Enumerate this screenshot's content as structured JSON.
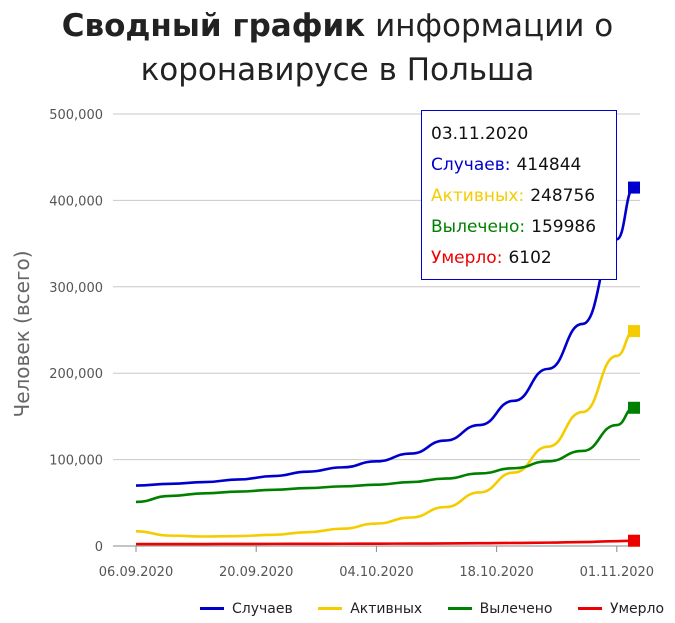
{
  "title_bold": "Сводный график",
  "title_rest_line1": "информации о",
  "title_line2": "коронавирусе в Польша",
  "chart_data": {
    "type": "line",
    "ylabel": "Человек (всего)",
    "ylim": [
      0,
      500000
    ],
    "y_ticks": [
      "0",
      "100,000",
      "200,000",
      "300,000",
      "400,000",
      "500,000"
    ],
    "x_ticks": [
      "06.09.2020",
      "20.09.2020",
      "04.10.2020",
      "18.10.2020",
      "01.11.2020"
    ],
    "x_range": [
      "2020-09-06",
      "2020-11-03"
    ],
    "x": [
      "2020-09-06",
      "2020-09-10",
      "2020-09-14",
      "2020-09-18",
      "2020-09-22",
      "2020-09-26",
      "2020-09-30",
      "2020-10-04",
      "2020-10-08",
      "2020-10-12",
      "2020-10-16",
      "2020-10-20",
      "2020-10-24",
      "2020-10-28",
      "2020-11-01",
      "2020-11-03"
    ],
    "series": [
      {
        "name": "Случаев",
        "color": "#0000cc",
        "values": [
          70000,
          72000,
          74000,
          77000,
          81000,
          86000,
          91000,
          98000,
          107000,
          122000,
          140000,
          168000,
          205000,
          257000,
          355000,
          414844
        ]
      },
      {
        "name": "Активных",
        "color": "#f5cc00",
        "values": [
          17000,
          12000,
          11000,
          11500,
          13000,
          16000,
          20000,
          26000,
          33000,
          45000,
          62000,
          85000,
          115000,
          155000,
          220000,
          248756
        ]
      },
      {
        "name": "Вылечено",
        "color": "#008000",
        "values": [
          51000,
          58000,
          61000,
          63000,
          65000,
          67000,
          69000,
          71000,
          74000,
          78000,
          84000,
          90000,
          98000,
          110000,
          140000,
          159986
        ]
      },
      {
        "name": "Умерло",
        "color": "#ee0000",
        "values": [
          2200,
          2250,
          2300,
          2400,
          2450,
          2500,
          2600,
          2700,
          2800,
          2950,
          3200,
          3500,
          3900,
          4600,
          5600,
          6102
        ]
      }
    ],
    "legend_position": "bottom",
    "grid": true
  },
  "tooltip": {
    "date": "03.11.2020",
    "rows": [
      {
        "label": "Случаев:",
        "value": "414844",
        "color": "#0000cc"
      },
      {
        "label": "Активных:",
        "value": "248756",
        "color": "#f5cc00"
      },
      {
        "label": "Вылечено:",
        "value": "159986",
        "color": "#008000"
      },
      {
        "label": "Умерло:",
        "value": "6102",
        "color": "#ee0000"
      }
    ]
  },
  "legend": [
    {
      "label": "Случаев",
      "color": "#0000cc"
    },
    {
      "label": "Активных",
      "color": "#f5cc00"
    },
    {
      "label": "Вылечено",
      "color": "#008000"
    },
    {
      "label": "Умерло",
      "color": "#ee0000"
    }
  ]
}
